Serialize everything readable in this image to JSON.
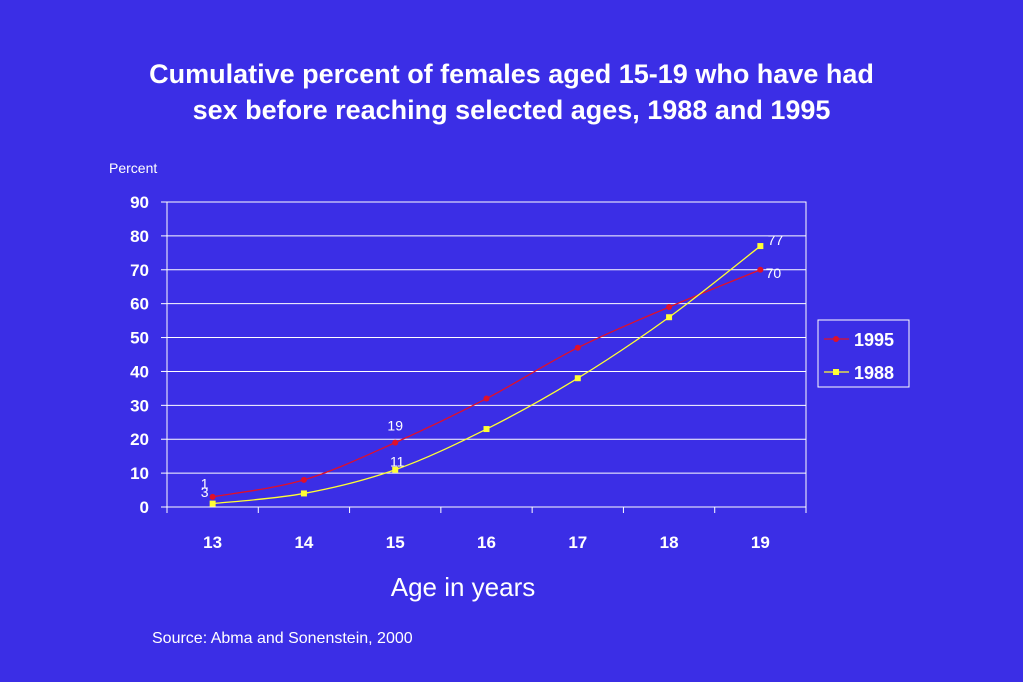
{
  "chart_data": {
    "type": "line",
    "title_lines": [
      "Cumulative percent of females aged 15-19 who have had",
      "sex before reaching selected ages, 1988 and 1995"
    ],
    "ylabel": "Percent",
    "xlabel": "Age in years",
    "categories": [
      "13",
      "14",
      "15",
      "16",
      "17",
      "18",
      "19"
    ],
    "ylim": [
      0,
      90
    ],
    "yticks": [
      "0",
      "10",
      "20",
      "30",
      "40",
      "50",
      "60",
      "70",
      "80",
      "90"
    ],
    "grid": true,
    "legend_position": "right",
    "series": [
      {
        "name": "1995",
        "color": "#e0102a",
        "marker": "circle",
        "values": [
          3,
          8,
          19,
          32,
          47,
          59,
          70
        ],
        "data_labels": [
          "3",
          null,
          "19",
          null,
          null,
          null,
          "70"
        ]
      },
      {
        "name": "1988",
        "color": "#ffff33",
        "marker": "square",
        "values": [
          1,
          4,
          11,
          23,
          38,
          56,
          77
        ],
        "data_labels": [
          "1",
          null,
          "11",
          null,
          null,
          null,
          "77"
        ]
      }
    ]
  },
  "source": "Source: Abma and Sonenstein, 2000"
}
